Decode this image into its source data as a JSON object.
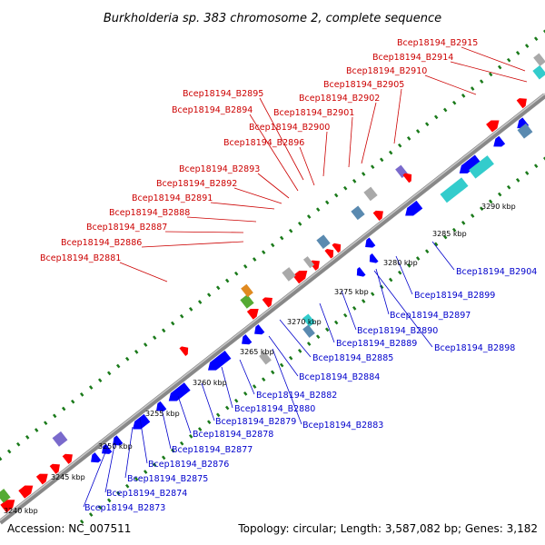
{
  "title": "Burkholderia sp. 383 chromosome 2, complete sequence",
  "footer": {
    "accession": "Accession: NC_007511",
    "summary": "Topology: circular; Length: 3,587,082 bp; Genes: 3,182"
  },
  "colors": {
    "forward_label": "#cc0000",
    "reverse_label": "#0000cc",
    "forward_gene": "#ff0000",
    "reverse_gene": "#0000ff",
    "backbone": "#888888",
    "tick": "#1a7a1a",
    "cyan": "#33cccc",
    "lightblue": "#5a8ab0",
    "purple": "#7a6acc",
    "green": "#55aa33",
    "orange": "#e08a20",
    "gray": "#a9a9a9"
  },
  "kbp_labels": [
    "3240 kbp",
    "3245 kbp",
    "3250 kbp",
    "3255 kbp",
    "3260 kbp",
    "3265 kbp",
    "3270 kbp",
    "3275 kbp",
    "3280 kbp",
    "3285 kbp",
    "3290 kbp"
  ],
  "forward_labels": [
    "Bcep18194_B2915",
    "Bcep18194_B2914",
    "Bcep18194_B2910",
    "Bcep18194_B2905",
    "Bcep18194_B2902",
    "Bcep18194_B2901",
    "Bcep18194_B2900",
    "Bcep18194_B2896",
    "Bcep18194_B2895",
    "Bcep18194_B2894",
    "Bcep18194_B2893",
    "Bcep18194_B2892",
    "Bcep18194_B2891",
    "Bcep18194_B2888",
    "Bcep18194_B2887",
    "Bcep18194_B2886",
    "Bcep18194_B2881"
  ],
  "reverse_labels": [
    "Bcep18194_B2904",
    "Bcep18194_B2899",
    "Bcep18194_B2897",
    "Bcep18194_B2890",
    "Bcep18194_B2889",
    "Bcep18194_B2898",
    "Bcep18194_B2885",
    "Bcep18194_B2884",
    "Bcep18194_B2882",
    "Bcep18194_B2880",
    "Bcep18194_B2879",
    "Bcep18194_B2883",
    "Bcep18194_B2878",
    "Bcep18194_B2877",
    "Bcep18194_B2876",
    "Bcep18194_B2875",
    "Bcep18194_B2874",
    "Bcep18194_B2873"
  ]
}
